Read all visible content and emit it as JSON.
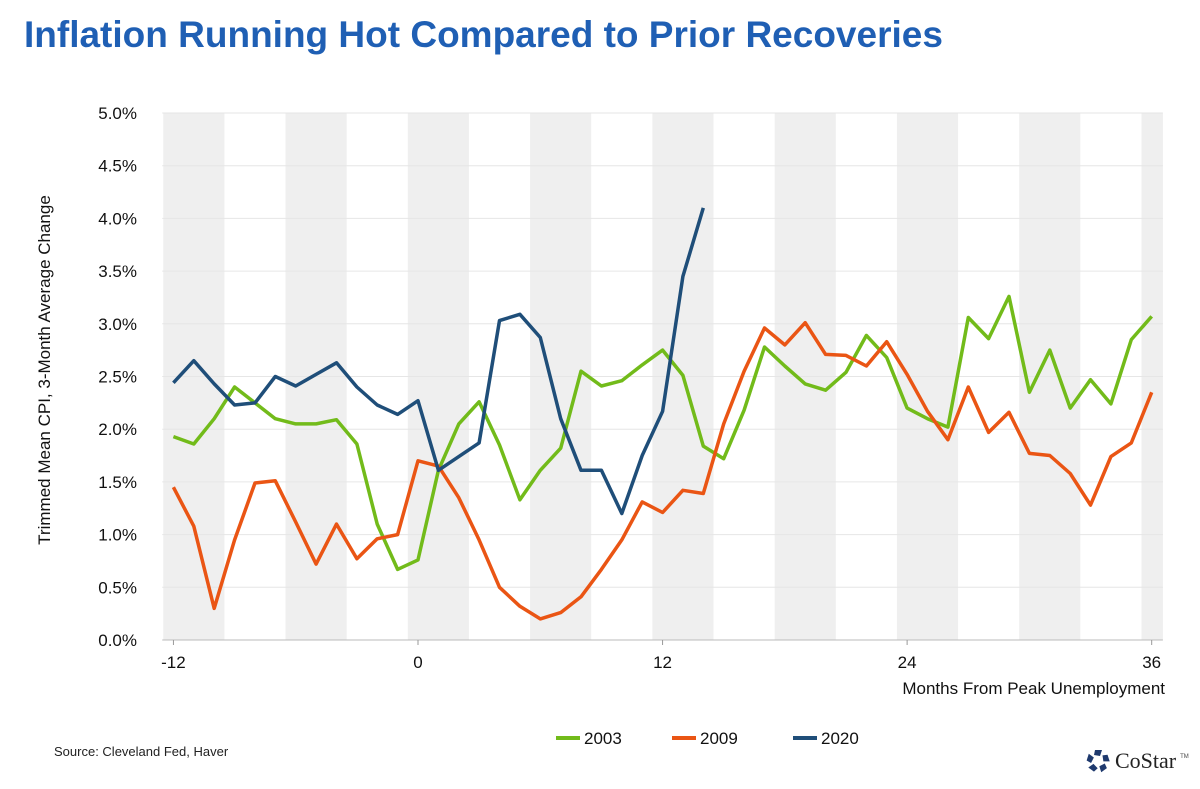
{
  "title": "Inflation Running Hot Compared to Prior Recoveries",
  "source": "Source: Cleveland Fed, Haver",
  "logo": {
    "text": "CoStar",
    "tm": "TM"
  },
  "chart_data": {
    "type": "line",
    "title": "Inflation Running Hot Compared to Prior Recoveries",
    "xlabel": "Months From Peak Unemployment",
    "ylabel": "Trimmed Mean CPI, 3-Month Average Change",
    "xlim": [
      -12,
      36
    ],
    "ylim": [
      0,
      5
    ],
    "xticks": [
      -12,
      0,
      12,
      24,
      36
    ],
    "xtick_labels": [
      "-12",
      "0",
      "12",
      "24",
      "36"
    ],
    "yticks": [
      0,
      0.5,
      1,
      1.5,
      2,
      2.5,
      3,
      3.5,
      4,
      4.5,
      5
    ],
    "ytick_labels": [
      "0.0%",
      "0.5%",
      "1.0%",
      "1.5%",
      "2.0%",
      "2.5%",
      "3.0%",
      "3.5%",
      "4.0%",
      "4.5%",
      "5.0%"
    ],
    "grid": true,
    "background": "alternating gray/white vertical bands every 3 months",
    "legend": "bottom",
    "x_start": -12,
    "series": [
      {
        "name": "2003",
        "color": "#72bb1a",
        "values": [
          1.93,
          1.86,
          2.1,
          2.4,
          2.25,
          2.1,
          2.05,
          2.05,
          2.09,
          1.86,
          1.1,
          0.67,
          0.76,
          1.61,
          2.05,
          2.26,
          1.85,
          1.33,
          1.61,
          1.82,
          2.55,
          2.41,
          2.46,
          2.61,
          2.75,
          2.51,
          1.84,
          1.72,
          2.18,
          2.78,
          2.6,
          2.43,
          2.37,
          2.54,
          2.89,
          2.68,
          2.2,
          2.1,
          2.02,
          3.06,
          2.86,
          3.26,
          2.35,
          2.75,
          2.2,
          2.47,
          2.24,
          2.85,
          3.07
        ]
      },
      {
        "name": "2009",
        "color": "#ea5514",
        "values": [
          1.45,
          1.08,
          0.3,
          0.95,
          1.49,
          1.51,
          1.12,
          0.72,
          1.1,
          0.77,
          0.96,
          1.0,
          1.7,
          1.65,
          1.35,
          0.95,
          0.5,
          0.32,
          0.2,
          0.26,
          0.41,
          0.67,
          0.95,
          1.31,
          1.21,
          1.42,
          1.39,
          2.05,
          2.55,
          2.96,
          2.8,
          3.01,
          2.71,
          2.7,
          2.6,
          2.83,
          2.52,
          2.17,
          1.9,
          2.4,
          1.97,
          2.16,
          1.77,
          1.75,
          1.58,
          1.28,
          1.74,
          1.87,
          2.35
        ]
      },
      {
        "name": "2020",
        "color": "#1f4e79",
        "values": [
          2.44,
          2.65,
          2.43,
          2.23,
          2.25,
          2.5,
          2.41,
          2.52,
          2.63,
          2.4,
          2.23,
          2.14,
          2.27,
          1.61,
          1.74,
          1.87,
          3.03,
          3.09,
          2.87,
          2.1,
          1.61,
          1.61,
          1.2,
          1.75,
          2.17,
          3.45,
          4.1
        ]
      }
    ]
  }
}
